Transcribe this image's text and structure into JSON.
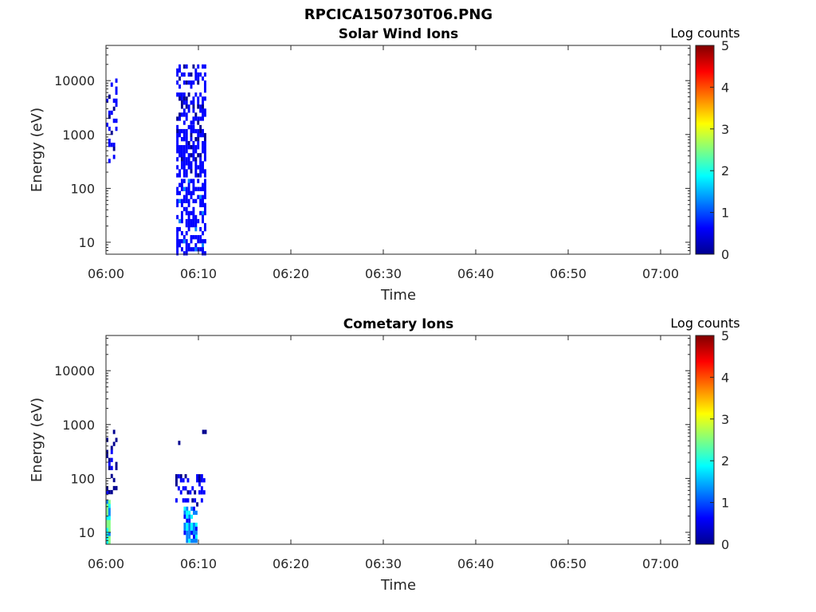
{
  "figure_title": "RPCICA150730T06.PNG",
  "colormap": [
    "#00008f",
    "#0000ff",
    "#0080ff",
    "#00ffff",
    "#80ff80",
    "#ffff00",
    "#ff8000",
    "#ff0000",
    "#800000"
  ],
  "chart_data": [
    {
      "type": "heatmap",
      "title": "Solar Wind Ions",
      "xlabel": "Time",
      "ylabel": "Energy (eV)",
      "x_ticks": [
        "06:00",
        "06:10",
        "06:20",
        "06:30",
        "06:40",
        "06:50",
        "07:00"
      ],
      "x_range_minutes": [
        0,
        63.5
      ],
      "y_ticks": [
        "10",
        "100",
        "1000",
        "10000"
      ],
      "y_scale": "log",
      "y_range": [
        6,
        45000
      ],
      "colorbar": {
        "label": "Log counts",
        "ticks": [
          "0",
          "1",
          "2",
          "3",
          "4",
          "5"
        ],
        "range": [
          0,
          5
        ]
      },
      "blocks": [
        {
          "t_start": 0.0,
          "t_end": 1.2,
          "e_min": 300,
          "e_max": 13000,
          "log_counts_max": 0.6,
          "density": 0.22
        },
        {
          "t_start": 7.6,
          "t_end": 10.8,
          "e_min": 1500,
          "e_max": 20000,
          "log_counts_max": 0.6,
          "density": 0.5
        },
        {
          "t_start": 7.6,
          "t_end": 10.8,
          "e_min": 150,
          "e_max": 1500,
          "log_counts_max": 0.7,
          "density": 0.65
        },
        {
          "t_start": 7.6,
          "t_end": 10.8,
          "e_min": 6,
          "e_max": 150,
          "log_counts_max": 1.0,
          "density": 0.55
        }
      ]
    },
    {
      "type": "heatmap",
      "title": "Cometary Ions",
      "xlabel": "Time",
      "ylabel": "Energy (eV)",
      "x_ticks": [
        "06:00",
        "06:10",
        "06:20",
        "06:30",
        "06:40",
        "06:50",
        "07:00"
      ],
      "x_range_minutes": [
        0,
        63.5
      ],
      "y_ticks": [
        "10",
        "100",
        "1000",
        "10000"
      ],
      "y_scale": "log",
      "y_range": [
        6,
        45000
      ],
      "colorbar": {
        "label": "Log counts",
        "ticks": [
          "0",
          "1",
          "2",
          "3",
          "4",
          "5"
        ],
        "range": [
          0,
          5
        ]
      },
      "blocks": [
        {
          "t_start": 0.0,
          "t_end": 1.2,
          "e_min": 40,
          "e_max": 800,
          "log_counts_max": 0.4,
          "density": 0.25
        },
        {
          "t_start": 0.0,
          "t_end": 0.5,
          "e_min": 6,
          "e_max": 40,
          "log_counts_max": 2.8,
          "density": 1.0
        },
        {
          "t_start": 7.5,
          "t_end": 10.8,
          "e_min": 30,
          "e_max": 120,
          "log_counts_max": 0.6,
          "density": 0.35
        },
        {
          "t_start": 8.4,
          "t_end": 10.0,
          "e_min": 6,
          "e_max": 30,
          "log_counts_max": 1.9,
          "density": 0.8
        },
        {
          "t_start": 7.8,
          "t_end": 8.0,
          "e_min": 400,
          "e_max": 500,
          "log_counts_max": 0.3,
          "density": 1.0
        },
        {
          "t_start": 10.4,
          "t_end": 10.8,
          "e_min": 700,
          "e_max": 800,
          "log_counts_max": 0.3,
          "density": 1.0
        }
      ]
    }
  ]
}
